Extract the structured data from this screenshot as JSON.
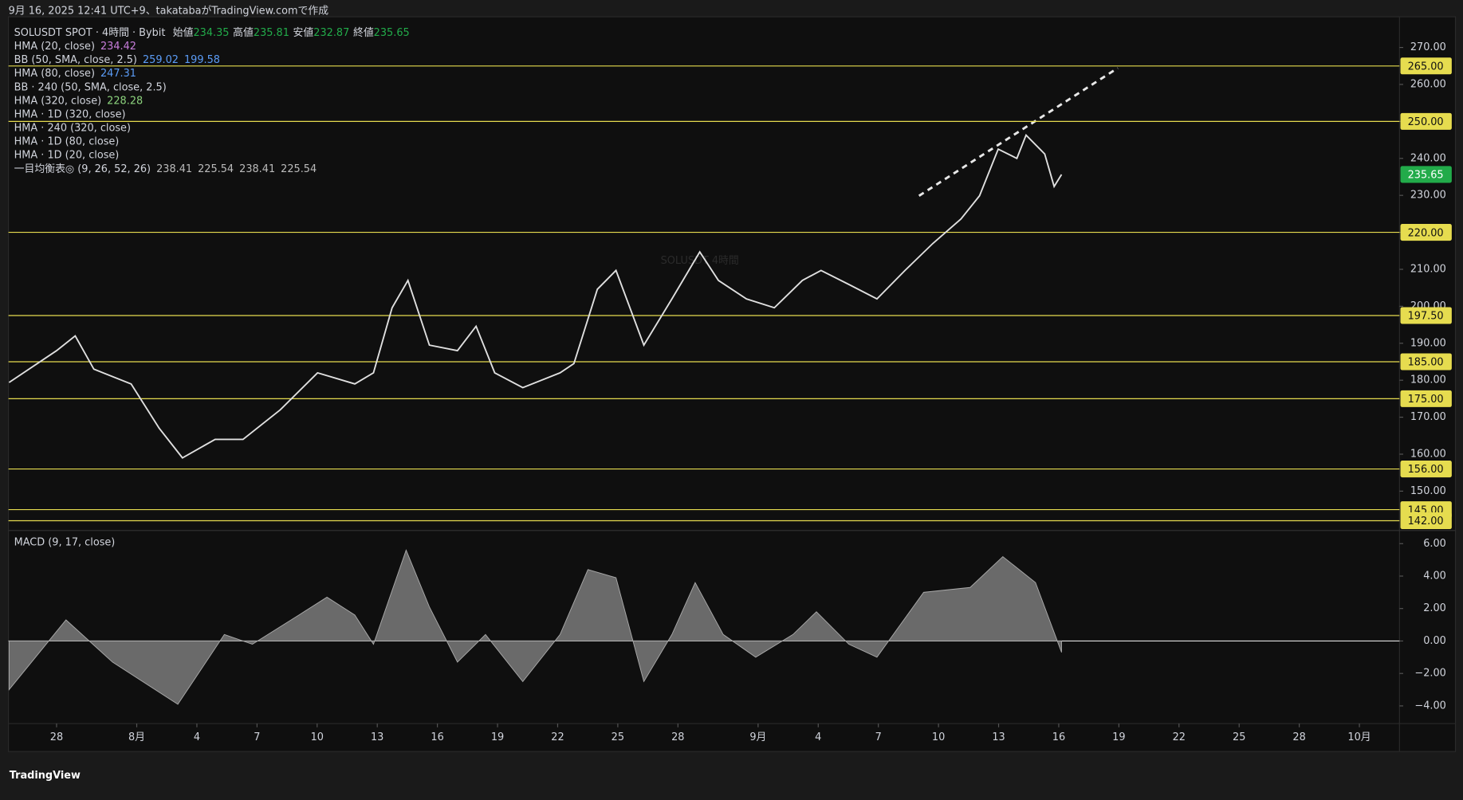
{
  "header": {
    "text": "9月 16, 2025 12:41 UTC+9、takatabaがTradingView.comで作成"
  },
  "brand": "TradingView",
  "chart_data": [
    {
      "type": "line",
      "title": "SOLUSDT SPOT · 4時間 · Bybit",
      "watermark": "SOLUSDT 4時間",
      "ohlc": [
        {
          "label": "始値",
          "value": 234.35
        },
        {
          "label": "高値",
          "value": 235.81
        },
        {
          "label": "安値",
          "value": 232.87
        },
        {
          "label": "終値",
          "value": 235.65
        }
      ],
      "indicators": [
        {
          "name": "HMA (20, close)",
          "values": [
            234.42
          ],
          "color": "#c77ddb"
        },
        {
          "name": "BB (50, SMA, close, 2.5)",
          "values": [
            259.02,
            199.58
          ],
          "color": "#5b9cf6"
        },
        {
          "name": "HMA (80, close)",
          "values": [
            247.31
          ],
          "color": "#5b9cf6"
        },
        {
          "name": "BB · 240 (50, SMA, close, 2.5)"
        },
        {
          "name": "HMA (320, close)",
          "values": [
            228.28
          ],
          "color": "#8bd17c"
        },
        {
          "name": "HMA · 1D (320, close)"
        },
        {
          "name": "HMA · 240 (320, close)"
        },
        {
          "name": "HMA · 1D (80, close)"
        },
        {
          "name": "HMA · 1D (20, close)"
        },
        {
          "name": "一目均衡表◎ (9, 26, 52, 26)",
          "values": [
            238.41,
            225.54,
            238.41,
            225.54
          ],
          "color": "#bbbbbb"
        }
      ],
      "x": [
        -2.37,
        0,
        0.93,
        1.86,
        3.72,
        5.12,
        6.28,
        7.91,
        9.3,
        11.16,
        13.02,
        14.88,
        15.81,
        16.74,
        17.53,
        18.6,
        20,
        20.93,
        21.86,
        23.26,
        25.12,
        25.81,
        26.98,
        27.91,
        29.3,
        30.7,
        32.09,
        33.02,
        34.42,
        35.81,
        37.21,
        38.14,
        39.53,
        40.93,
        42.33,
        43.72,
        45.12,
        46.05,
        46.98,
        47.91,
        48.37,
        49.3,
        49.77,
        50.14
      ],
      "values": [
        179.4,
        188,
        192,
        183,
        179,
        167,
        159,
        164,
        164,
        172,
        182,
        179,
        182,
        199.6,
        207,
        189.5,
        188,
        194.6,
        182,
        178,
        182,
        184.5,
        204.6,
        209.7,
        189.5,
        202,
        214.7,
        207,
        202,
        199.6,
        207,
        209.7,
        205.9,
        202,
        209.7,
        217,
        223.6,
        229.9,
        242.5,
        240,
        246.3,
        241.2,
        232.4,
        235.65
      ],
      "color": "#e0e0e0",
      "xlim": [
        -2.4,
        67
      ],
      "xticks": [
        {
          "value": 0,
          "label": "28"
        },
        {
          "value": 4,
          "label": "8月"
        },
        {
          "value": 7,
          "label": "4"
        },
        {
          "value": 10,
          "label": "7"
        },
        {
          "value": 13,
          "label": "10"
        },
        {
          "value": 16,
          "label": "13"
        },
        {
          "value": 19,
          "label": "16"
        },
        {
          "value": 22,
          "label": "19"
        },
        {
          "value": 25,
          "label": "22"
        },
        {
          "value": 28,
          "label": "25"
        },
        {
          "value": 31,
          "label": "28"
        },
        {
          "value": 35,
          "label": "9月"
        },
        {
          "value": 38,
          "label": "4"
        },
        {
          "value": 41,
          "label": "7"
        },
        {
          "value": 44,
          "label": "10"
        },
        {
          "value": 47,
          "label": "13"
        },
        {
          "value": 50,
          "label": "16"
        },
        {
          "value": 53,
          "label": "19"
        },
        {
          "value": 56,
          "label": "22"
        },
        {
          "value": 59,
          "label": "25"
        },
        {
          "value": 62,
          "label": "28"
        },
        {
          "value": 65,
          "label": "10月"
        }
      ],
      "ylim": [
        139.6,
        278.3
      ],
      "yticks": [
        {
          "value": 150,
          "label": "150.00"
        },
        {
          "value": 160,
          "label": "160.00"
        },
        {
          "value": 170,
          "label": "170.00"
        },
        {
          "value": 180,
          "label": "180.00"
        },
        {
          "value": 190,
          "label": "190.00"
        },
        {
          "value": 200,
          "label": "200.00"
        },
        {
          "value": 210,
          "label": "210.00"
        },
        {
          "value": 220,
          "label": "220.00"
        },
        {
          "value": 230,
          "label": "230.00"
        },
        {
          "value": 240,
          "label": "240.00"
        },
        {
          "value": 250,
          "label": "250.00"
        },
        {
          "value": 260,
          "label": "260.00"
        },
        {
          "value": 270,
          "label": "270.00"
        }
      ],
      "levels": [
        265,
        250,
        220,
        197.5,
        185,
        175,
        156,
        145,
        142
      ],
      "level_labels": [
        "265.00",
        "250.00",
        "220.00",
        "197.50",
        "185.00",
        "175.00",
        "156.00",
        "145.00",
        "142.00"
      ],
      "level_color": "#e6dc4f",
      "last_price": 235.65,
      "last_color": "#22ab4a",
      "grid": false
    },
    {
      "type": "area",
      "title": "MACD (9, 17, close)",
      "x": [
        -2.37,
        0.47,
        2.79,
        6.05,
        8.37,
        9.77,
        12.09,
        13.49,
        14.88,
        15.81,
        17.44,
        18.6,
        20,
        21.4,
        23.26,
        25.12,
        26.51,
        27.91,
        29.3,
        30.7,
        31.86,
        33.26,
        34.88,
        36.74,
        37.91,
        39.53,
        40.93,
        43.26,
        45.58,
        47.21,
        48.84,
        50.14
      ],
      "values": [
        -3,
        1.3,
        -1.3,
        -3.9,
        0.4,
        -0.2,
        1.6,
        2.7,
        1.6,
        -0.2,
        5.6,
        2.1,
        -1.3,
        0.4,
        -2.5,
        0.4,
        4.4,
        3.9,
        -2.5,
        0.4,
        3.6,
        0.4,
        -1,
        0.4,
        1.8,
        -0.2,
        -1,
        3,
        3.3,
        5.2,
        3.6,
        -0.7
      ],
      "color": "#8a8a8a",
      "xlim": [
        -2.4,
        67
      ],
      "ylim": [
        -5.03,
        6.75
      ],
      "yticks": [
        {
          "value": 6,
          "label": "6.00"
        },
        {
          "value": 4,
          "label": "4.00"
        },
        {
          "value": 2,
          "label": "2.00"
        },
        {
          "value": 0,
          "label": "0.00"
        },
        {
          "value": -2,
          "label": "−2.00"
        },
        {
          "value": -4,
          "label": "−4.00"
        }
      ],
      "zero_line": true
    }
  ]
}
